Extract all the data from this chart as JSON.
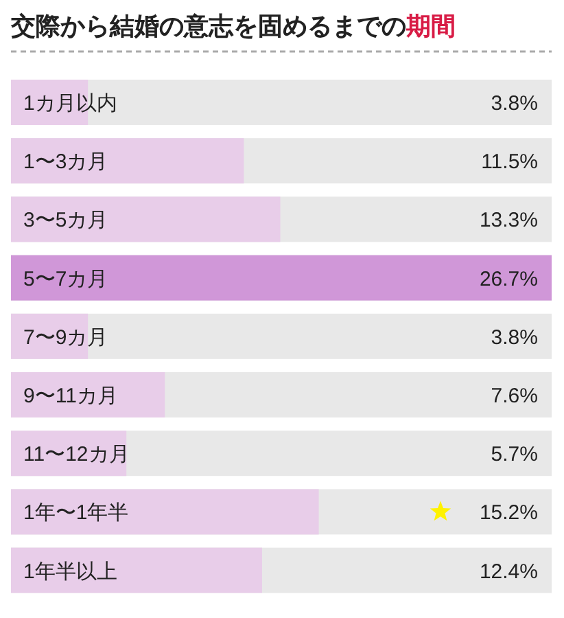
{
  "chart_data": {
    "type": "bar",
    "orientation": "horizontal",
    "title": "交際から結婚の意志を固めるまでの期間",
    "categories": [
      "1カ月以内",
      "1〜3カ月",
      "3〜5カ月",
      "5〜7カ月",
      "7〜9カ月",
      "9〜11カ月",
      "11〜12カ月",
      "1年〜1年半",
      "1年半以上"
    ],
    "values": [
      3.8,
      11.5,
      13.3,
      26.7,
      3.8,
      7.6,
      5.7,
      15.2,
      12.4
    ],
    "colors": [
      "#e8cde9",
      "#e8cde9",
      "#e8cde9",
      "#d097d8",
      "#e8cde9",
      "#e8cde9",
      "#e8cde9",
      "#e8cde9",
      "#e8cde9"
    ],
    "value_labels": [
      "3.8%",
      "11.5%",
      "13.3%",
      "26.7%",
      "3.8%",
      "7.6%",
      "5.7%",
      "15.2%",
      "12.4%"
    ]
  }
}
